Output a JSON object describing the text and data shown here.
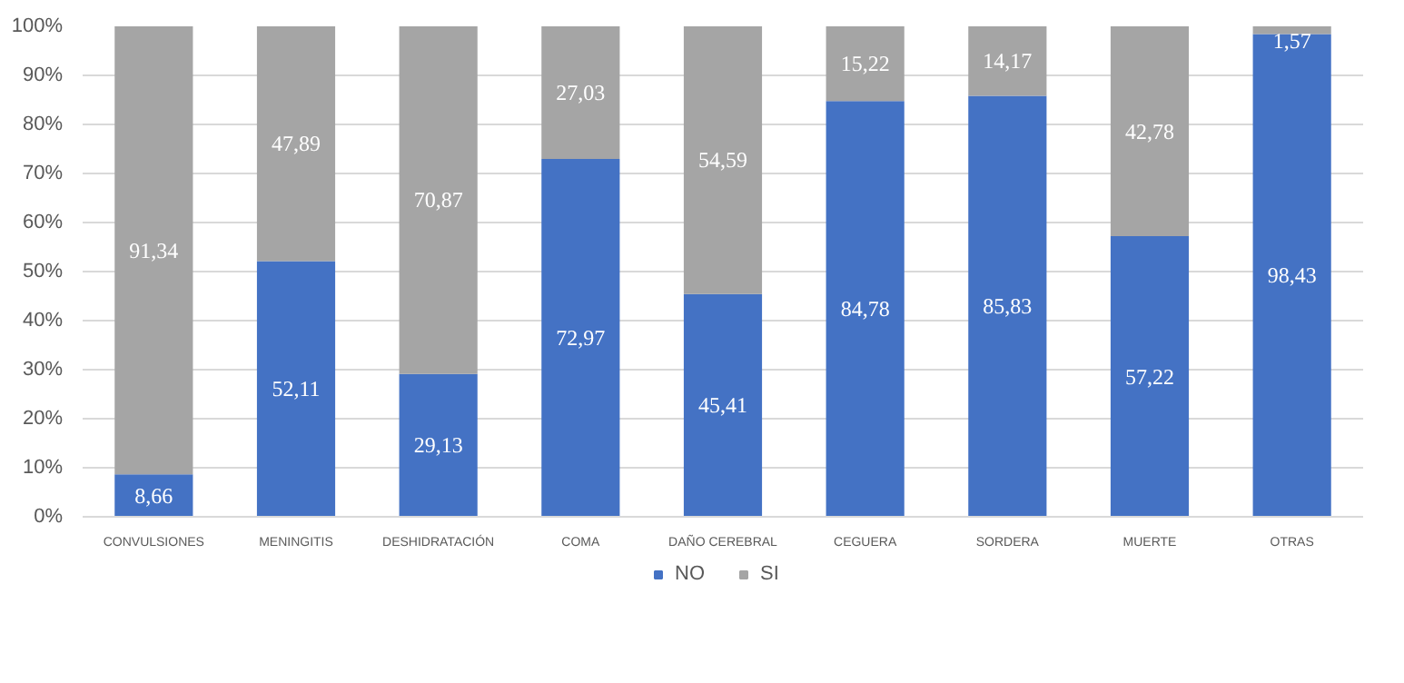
{
  "chart_data": {
    "type": "bar",
    "stacked": true,
    "categories": [
      "CONVULSIONES",
      "MENINGITIS",
      "DESHIDRATACIÓN",
      "COMA",
      "DAÑO CEREBRAL",
      "CEGUERA",
      "SORDERA",
      "MUERTE",
      "OTRAS"
    ],
    "series": [
      {
        "name": "NO",
        "color": "#4472c4",
        "values": [
          8.66,
          52.11,
          29.13,
          72.97,
          45.41,
          84.78,
          85.83,
          57.22,
          98.43
        ],
        "value_labels": [
          "8,66",
          "52,11",
          "29,13",
          "72,97",
          "45,41",
          "84,78",
          "85,83",
          "57,22",
          "98,43"
        ]
      },
      {
        "name": "SI",
        "color": "#a5a5a5",
        "values": [
          91.34,
          47.89,
          70.87,
          27.03,
          54.59,
          15.22,
          14.17,
          42.78,
          1.57
        ],
        "value_labels": [
          "91,34",
          "47,89",
          "70,87",
          "27,03",
          "54,59",
          "15,22",
          "14,17",
          "42,78",
          "1,57"
        ]
      }
    ],
    "ylim": [
      0,
      100
    ],
    "yticks": [
      {
        "value": 0,
        "label": "0%"
      },
      {
        "value": 10,
        "label": "10%"
      },
      {
        "value": 20,
        "label": "20%"
      },
      {
        "value": 30,
        "label": "30%"
      },
      {
        "value": 40,
        "label": "40%"
      },
      {
        "value": 50,
        "label": "50%"
      },
      {
        "value": 60,
        "label": "60%"
      },
      {
        "value": 70,
        "label": "70%"
      },
      {
        "value": 80,
        "label": "80%"
      },
      {
        "value": 90,
        "label": "90%"
      },
      {
        "value": 100,
        "label": "100%"
      }
    ],
    "grid": "y",
    "legend": "bottom"
  }
}
